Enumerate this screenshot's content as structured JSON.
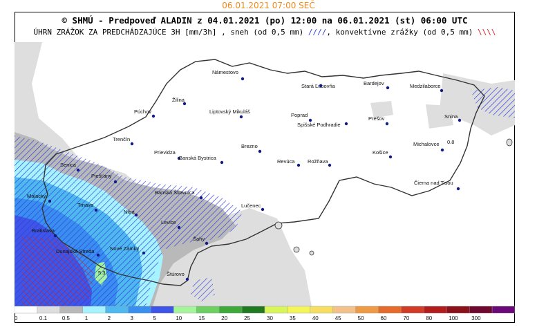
{
  "timestamp": "06.01.2021 07:00 SEČ",
  "header": {
    "line1": "© SHMÚ - Predpoveď ALADIN z 04.01.2021 (po) 12:00 na 06.01.2021 (st) 06:00 UTC",
    "line2_main": "ÚHRN ZRÁŽOK ZA PREDCHÁDZAJÚCE 3H [mm/3h] , sneh (od 0,5 mm)",
    "line2_snow_mark": "////",
    "line2_conv": ", konvektívne zrážky (od 0,5 mm)",
    "line2_conv_mark": "\\\\\\\\"
  },
  "colors": {
    "snow_hatch": "#2a3ee0",
    "conv_hatch": "#d81f1f",
    "border": "#333333",
    "city_dot": "#101a8c"
  },
  "cities": [
    {
      "id": "namestovo",
      "name": "Námestovo"
    },
    {
      "id": "stara-lubovna",
      "name": "Stará Ľubovňa"
    },
    {
      "id": "bardejov",
      "name": "Bardejov"
    },
    {
      "id": "medzilaborce",
      "name": "Medzilaborce"
    },
    {
      "id": "zilina",
      "name": "Žilina"
    },
    {
      "id": "puchov",
      "name": "Púchov"
    },
    {
      "id": "liptovsky-mikulas",
      "name": "Liptovský Mikuláš"
    },
    {
      "id": "poprad",
      "name": "Poprad"
    },
    {
      "id": "spisske-podhradie",
      "name": "Spišské Podhradie"
    },
    {
      "id": "presov",
      "name": "Prešov"
    },
    {
      "id": "snina",
      "name": "Snina"
    },
    {
      "id": "trencin",
      "name": "Trenčín"
    },
    {
      "id": "brezno",
      "name": "Brezno"
    },
    {
      "id": "kosice",
      "name": "Košice"
    },
    {
      "id": "michalovce",
      "name": "Michalovce"
    },
    {
      "id": "prievidza",
      "name": "Prievidza"
    },
    {
      "id": "banska-bystrica",
      "name": "Banská Bystrica"
    },
    {
      "id": "revuca",
      "name": "Revúca"
    },
    {
      "id": "roznava",
      "name": "Rožňava"
    },
    {
      "id": "senica",
      "name": "Senica"
    },
    {
      "id": "piestany",
      "name": "Piešťany"
    },
    {
      "id": "cierna-nad-tisou",
      "name": "Čierna nad Tisou"
    },
    {
      "id": "malacky",
      "name": "Malacky"
    },
    {
      "id": "banska-stiavnica",
      "name": "Banská Štiavnica"
    },
    {
      "id": "trnava",
      "name": "Trnava"
    },
    {
      "id": "nitra",
      "name": "Nitra"
    },
    {
      "id": "lucenec",
      "name": "Lučenec"
    },
    {
      "id": "levice",
      "name": "Levice"
    },
    {
      "id": "bratislava",
      "name": "Bratislava"
    },
    {
      "id": "sahy",
      "name": "Šahy"
    },
    {
      "id": "dunajska-streda",
      "name": "Dunajská Streda"
    },
    {
      "id": "nove-zamky",
      "name": "Nové Zámky"
    },
    {
      "id": "sturovo",
      "name": "Štúrovo"
    }
  ],
  "value_annotations": [
    "5.3",
    "0.8"
  ],
  "legend": {
    "unit": "mm/3h",
    "bins": [
      {
        "label": "0",
        "color": "#ffffff"
      },
      {
        "label": "0.1",
        "color": "#dedede"
      },
      {
        "label": "0.5",
        "color": "#b9b9b9"
      },
      {
        "label": "1",
        "color": "#a6f3ff"
      },
      {
        "label": "2",
        "color": "#4fb9ef"
      },
      {
        "label": "3",
        "color": "#3a8ef0"
      },
      {
        "label": "5",
        "color": "#3e55e7"
      },
      {
        "label": "10",
        "color": "#a6f59c"
      },
      {
        "label": "15",
        "color": "#6ed062"
      },
      {
        "label": "20",
        "color": "#3fa83a"
      },
      {
        "label": "25",
        "color": "#227a20"
      },
      {
        "label": "30",
        "color": "#d8f55a"
      },
      {
        "label": "35",
        "color": "#f4f55a"
      },
      {
        "label": "40",
        "color": "#f7de62"
      },
      {
        "label": "45",
        "color": "#f3c28a"
      },
      {
        "label": "50",
        "color": "#ef9a45"
      },
      {
        "label": "60",
        "color": "#e56a2b"
      },
      {
        "label": "70",
        "color": "#d23b26"
      },
      {
        "label": "80",
        "color": "#b31d1d"
      },
      {
        "label": "100",
        "color": "#8c1219"
      },
      {
        "label": "300",
        "color": "#6e0a2e"
      },
      {
        "label": "",
        "color": "#6a0a78"
      }
    ]
  }
}
